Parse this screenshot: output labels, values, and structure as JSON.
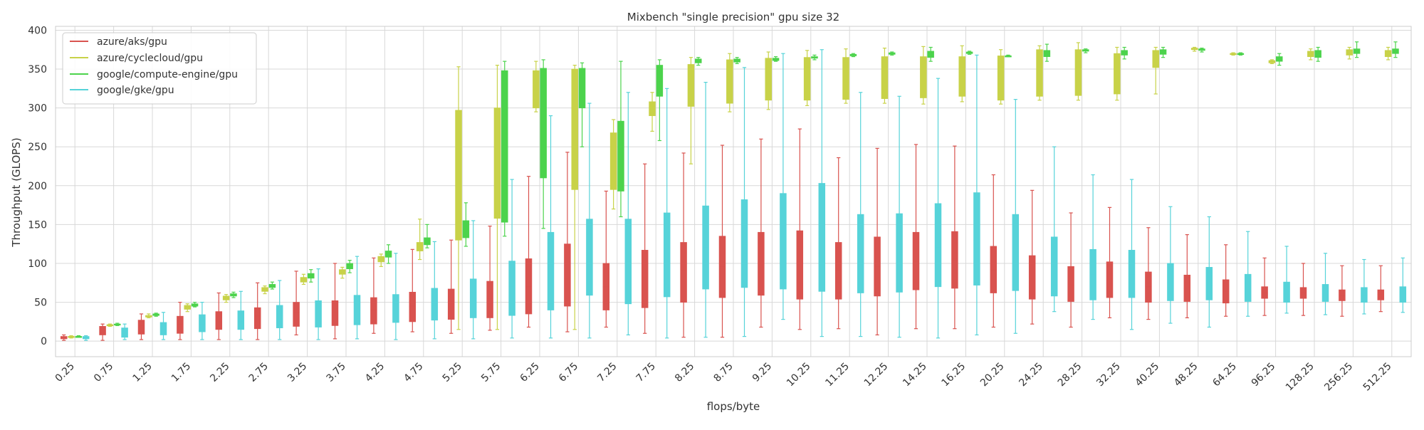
{
  "chart_data": {
    "type": "box",
    "title": "Mixbench \"single precision\" gpu size 32",
    "xlabel": "flops/byte",
    "ylabel": "Throughput (GLOPS)",
    "ylim": [
      -20,
      405
    ],
    "yticks": [
      0,
      50,
      100,
      150,
      200,
      250,
      300,
      350,
      400
    ],
    "grid": true,
    "legend_position": "top-left",
    "categories": [
      "0.25",
      "0.75",
      "1.25",
      "1.75",
      "2.25",
      "2.75",
      "3.25",
      "3.75",
      "4.25",
      "4.75",
      "5.25",
      "5.75",
      "6.25",
      "6.75",
      "7.25",
      "7.75",
      "8.25",
      "8.75",
      "9.25",
      "10.25",
      "11.25",
      "12.25",
      "14.25",
      "16.25",
      "20.25",
      "24.25",
      "28.25",
      "32.25",
      "40.25",
      "48.25",
      "64.25",
      "96.25",
      "128.25",
      "256.25",
      "512.25"
    ],
    "series": [
      {
        "name": "azure/aks/gpu",
        "color": "#d9534f",
        "boxes": [
          [
            1,
            3,
            5,
            6,
            8
          ],
          [
            1,
            8,
            15,
            19,
            22
          ],
          [
            2,
            9,
            20,
            27,
            35
          ],
          [
            2,
            10,
            22,
            32,
            50
          ],
          [
            2,
            15,
            28,
            38,
            62
          ],
          [
            2,
            16,
            32,
            43,
            75
          ],
          [
            8,
            19,
            37,
            50,
            90
          ],
          [
            3,
            20,
            38,
            52,
            100
          ],
          [
            10,
            22,
            40,
            56,
            107
          ],
          [
            12,
            25,
            45,
            63,
            118
          ],
          [
            10,
            28,
            50,
            67,
            130
          ],
          [
            14,
            30,
            55,
            77,
            148
          ],
          [
            18,
            35,
            70,
            106,
            212
          ],
          [
            12,
            45,
            80,
            125,
            243
          ],
          [
            18,
            40,
            70,
            100,
            193
          ],
          [
            10,
            43,
            82,
            117,
            228
          ],
          [
            5,
            50,
            90,
            127,
            242
          ],
          [
            5,
            56,
            95,
            135,
            252
          ],
          [
            18,
            59,
            100,
            140,
            260
          ],
          [
            15,
            54,
            100,
            142,
            273
          ],
          [
            16,
            54,
            90,
            127,
            236
          ],
          [
            8,
            58,
            96,
            134,
            248
          ],
          [
            16,
            66,
            103,
            140,
            253
          ],
          [
            16,
            68,
            105,
            141,
            251
          ],
          [
            18,
            62,
            92,
            122,
            214
          ],
          [
            22,
            54,
            80,
            110,
            194
          ],
          [
            18,
            51,
            72,
            96,
            165
          ],
          [
            30,
            56,
            80,
            102,
            172
          ],
          [
            28,
            50,
            70,
            89,
            146
          ],
          [
            30,
            51,
            68,
            85,
            137
          ],
          [
            32,
            49,
            63,
            79,
            124
          ],
          [
            33,
            55,
            62,
            70,
            107
          ],
          [
            33,
            55,
            62,
            69,
            100
          ],
          [
            32,
            52,
            58,
            66,
            97
          ],
          [
            38,
            53,
            60,
            66,
            97
          ]
        ]
      },
      {
        "name": "azure/cyclecloud/gpu",
        "color": "#c8d248",
        "boxes": [
          [
            4,
            5,
            6,
            6,
            7
          ],
          [
            19,
            20,
            21,
            21,
            22
          ],
          [
            30,
            31,
            32,
            33,
            35
          ],
          [
            38,
            41,
            44,
            46,
            48
          ],
          [
            50,
            53,
            56,
            58,
            60
          ],
          [
            61,
            64,
            67,
            69,
            71
          ],
          [
            73,
            76,
            79,
            82,
            86
          ],
          [
            81,
            86,
            90,
            92,
            95
          ],
          [
            96,
            102,
            106,
            109,
            112
          ],
          [
            105,
            116,
            121,
            127,
            157
          ],
          [
            15,
            130,
            200,
            297,
            353
          ],
          [
            15,
            158,
            240,
            300,
            355
          ],
          [
            295,
            300,
            330,
            348,
            360
          ],
          [
            15,
            195,
            300,
            350,
            355
          ],
          [
            170,
            195,
            230,
            268,
            285
          ],
          [
            270,
            290,
            300,
            308,
            320
          ],
          [
            228,
            302,
            340,
            356,
            365
          ],
          [
            295,
            306,
            340,
            362,
            370
          ],
          [
            298,
            310,
            345,
            364,
            372
          ],
          [
            303,
            310,
            345,
            365,
            374
          ],
          [
            306,
            311,
            345,
            365,
            376
          ],
          [
            306,
            312,
            345,
            366,
            377
          ],
          [
            305,
            313,
            345,
            366,
            379
          ],
          [
            308,
            315,
            345,
            366,
            380
          ],
          [
            305,
            310,
            345,
            367,
            375
          ],
          [
            310,
            315,
            355,
            375,
            380
          ],
          [
            310,
            316,
            355,
            375,
            384
          ],
          [
            310,
            318,
            350,
            370,
            378
          ],
          [
            318,
            352,
            365,
            374,
            378
          ],
          [
            373,
            375,
            376,
            377,
            378
          ],
          [
            368,
            369,
            370,
            370,
            371
          ],
          [
            357,
            358,
            360,
            361,
            362
          ],
          [
            362,
            366,
            370,
            373,
            376
          ],
          [
            363,
            368,
            372,
            375,
            378
          ],
          [
            362,
            366,
            370,
            374,
            378
          ]
        ]
      },
      {
        "name": "google/compute-engine/gpu",
        "color": "#4cd34c",
        "boxes": [
          [
            5,
            5,
            6,
            6,
            7
          ],
          [
            20,
            21,
            21,
            22,
            23
          ],
          [
            32,
            33,
            34,
            35,
            36
          ],
          [
            44,
            45,
            47,
            48,
            50
          ],
          [
            56,
            58,
            60,
            61,
            63
          ],
          [
            67,
            69,
            71,
            73,
            76
          ],
          [
            76,
            81,
            84,
            87,
            92
          ],
          [
            88,
            93,
            97,
            100,
            104
          ],
          [
            100,
            108,
            112,
            116,
            124
          ],
          [
            120,
            124,
            128,
            133,
            150
          ],
          [
            122,
            133,
            143,
            155,
            178
          ],
          [
            135,
            153,
            250,
            348,
            360
          ],
          [
            145,
            210,
            280,
            351,
            362
          ],
          [
            250,
            300,
            330,
            351,
            358
          ],
          [
            160,
            193,
            240,
            283,
            360
          ],
          [
            258,
            315,
            335,
            355,
            362
          ],
          [
            355,
            358,
            361,
            363,
            365
          ],
          [
            357,
            359,
            361,
            363,
            365
          ],
          [
            360,
            361,
            363,
            364,
            366
          ],
          [
            362,
            364,
            365,
            366,
            368
          ],
          [
            366,
            367,
            368,
            369,
            370
          ],
          [
            368,
            369,
            370,
            371,
            372
          ],
          [
            360,
            365,
            369,
            373,
            378
          ],
          [
            369,
            370,
            371,
            372,
            373
          ],
          [
            366,
            366,
            367,
            367,
            368
          ],
          [
            360,
            366,
            370,
            374,
            382
          ],
          [
            371,
            373,
            374,
            375,
            376
          ],
          [
            363,
            368,
            371,
            374,
            378
          ],
          [
            365,
            369,
            372,
            375,
            378
          ],
          [
            372,
            374,
            375,
            376,
            377
          ],
          [
            368,
            369,
            370,
            370,
            371
          ],
          [
            355,
            360,
            363,
            366,
            370
          ],
          [
            360,
            365,
            370,
            374,
            378
          ],
          [
            365,
            370,
            373,
            376,
            385
          ],
          [
            365,
            370,
            372,
            376,
            385
          ]
        ]
      },
      {
        "name": "google/gke/gpu",
        "color": "#56d3d9",
        "boxes": [
          [
            1,
            3,
            5,
            6,
            7
          ],
          [
            2,
            5,
            10,
            17,
            22
          ],
          [
            2,
            8,
            15,
            24,
            37
          ],
          [
            2,
            12,
            22,
            34,
            50
          ],
          [
            2,
            15,
            26,
            39,
            64
          ],
          [
            2,
            17,
            30,
            46,
            78
          ],
          [
            2,
            18,
            33,
            52,
            93
          ],
          [
            3,
            21,
            38,
            59,
            109
          ],
          [
            2,
            24,
            40,
            60,
            113
          ],
          [
            3,
            27,
            45,
            68,
            128
          ],
          [
            3,
            30,
            55,
            80,
            155
          ],
          [
            4,
            33,
            70,
            103,
            208
          ],
          [
            4,
            40,
            95,
            140,
            290
          ],
          [
            4,
            59,
            110,
            157,
            306
          ],
          [
            8,
            48,
            110,
            157,
            320
          ],
          [
            4,
            57,
            110,
            165,
            325
          ],
          [
            5,
            67,
            120,
            174,
            333
          ],
          [
            6,
            69,
            125,
            182,
            352
          ],
          [
            28,
            67,
            130,
            190,
            370
          ],
          [
            6,
            64,
            140,
            203,
            375
          ],
          [
            6,
            62,
            110,
            163,
            320
          ],
          [
            5,
            63,
            110,
            164,
            315
          ],
          [
            4,
            70,
            120,
            177,
            338
          ],
          [
            8,
            72,
            130,
            191,
            368
          ],
          [
            10,
            65,
            110,
            163,
            311
          ],
          [
            38,
            58,
            95,
            134,
            250
          ],
          [
            28,
            53,
            85,
            118,
            214
          ],
          [
            15,
            56,
            85,
            117,
            208
          ],
          [
            23,
            52,
            75,
            100,
            173
          ],
          [
            18,
            53,
            72,
            95,
            160
          ],
          [
            32,
            51,
            67,
            86,
            141
          ],
          [
            36,
            50,
            60,
            76,
            122
          ],
          [
            34,
            51,
            60,
            73,
            113
          ],
          [
            35,
            50,
            58,
            69,
            105
          ],
          [
            37,
            50,
            60,
            70,
            107
          ]
        ]
      }
    ]
  }
}
